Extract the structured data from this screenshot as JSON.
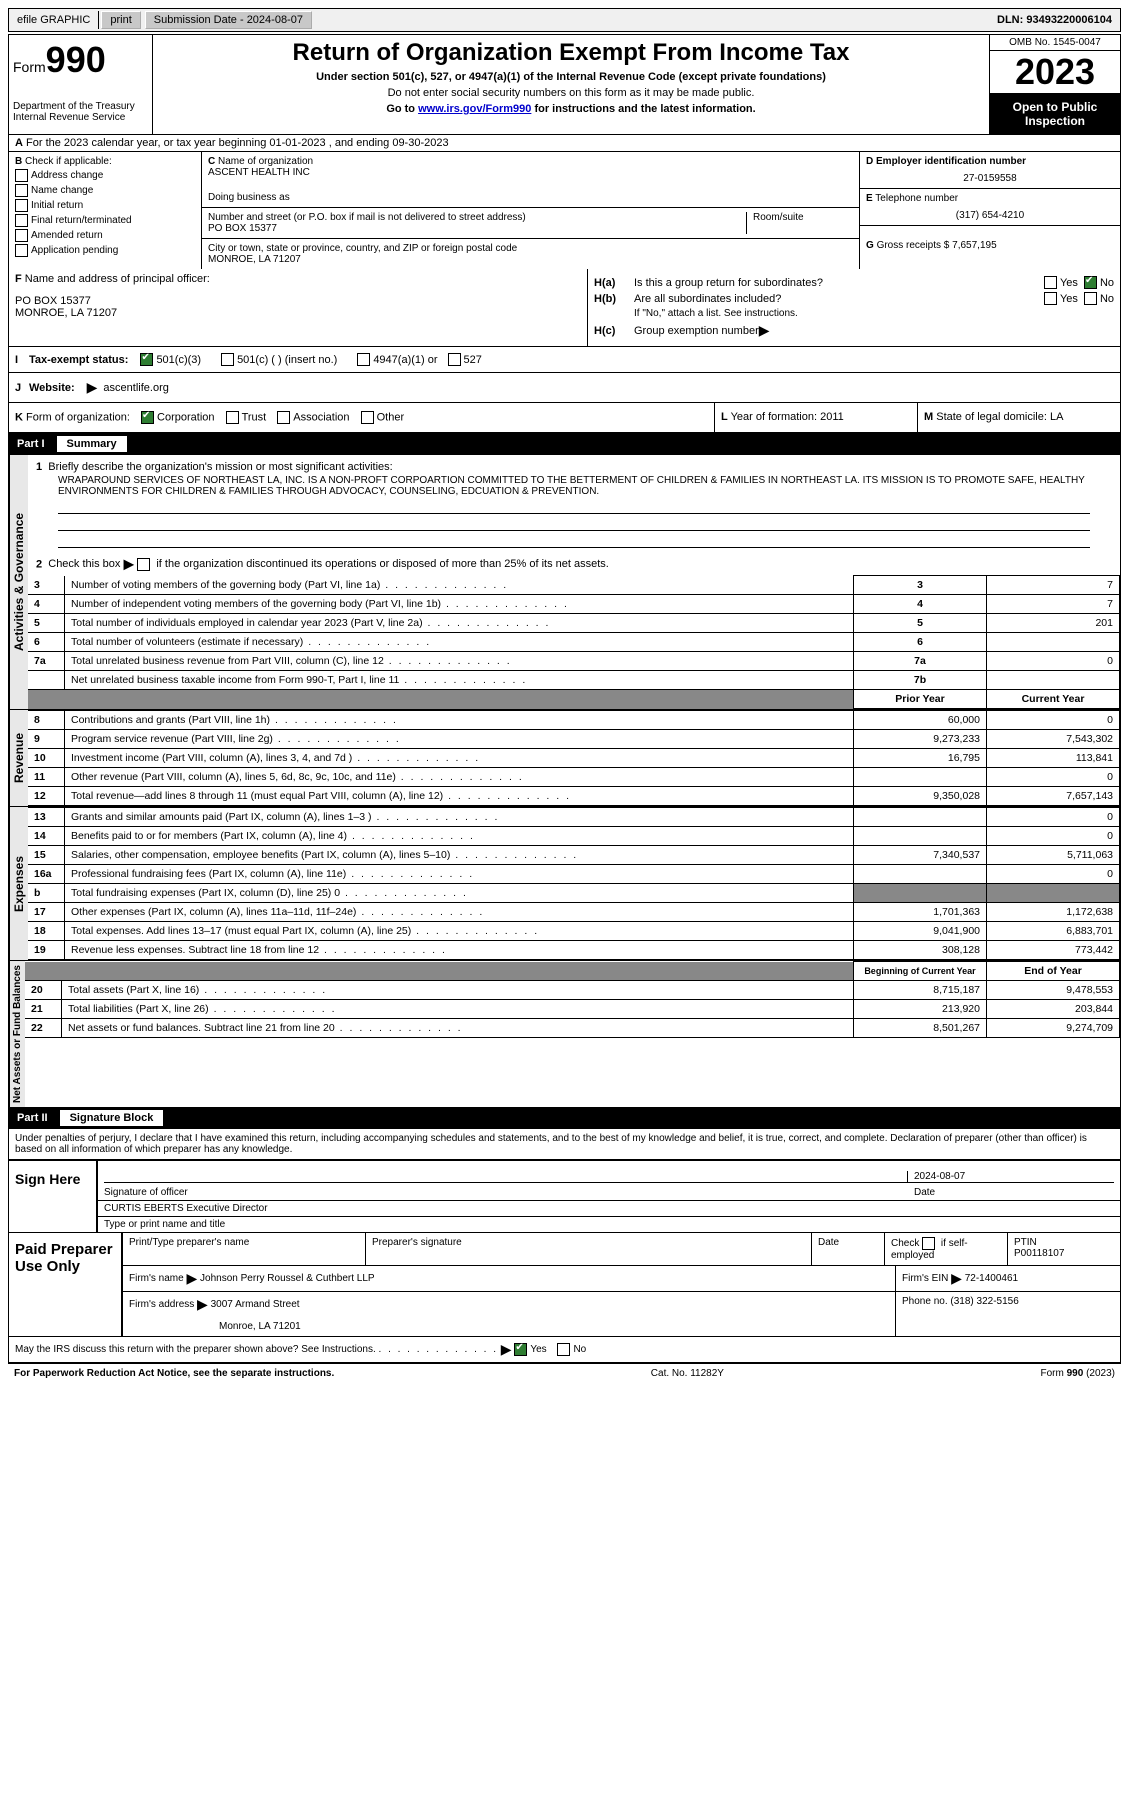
{
  "topbar": {
    "efile": "efile GRAPHIC",
    "print": "print",
    "submission_label": "Submission Date - 2024-08-07",
    "dln_label": "DLN: 93493220006104"
  },
  "header": {
    "form_prefix": "Form",
    "form_number": "990",
    "dept": "Department of the Treasury",
    "irs": "Internal Revenue Service",
    "title": "Return of Organization Exempt From Income Tax",
    "subtitle": "Under section 501(c), 527, or 4947(a)(1) of the Internal Revenue Code (except private foundations)",
    "warn": "Do not enter social security numbers on this form as it may be made public.",
    "goto_pre": "Go to ",
    "goto_link": "www.irs.gov/Form990",
    "goto_post": " for instructions and the latest information.",
    "omb": "OMB No. 1545-0047",
    "year": "2023",
    "open": "Open to Public Inspection"
  },
  "lineA": "For the 2023 calendar year, or tax year beginning 01-01-2023   , and ending 09-30-2023",
  "colB": {
    "label": "Check if applicable:",
    "opts": [
      "Address change",
      "Name change",
      "Initial return",
      "Final return/terminated",
      "Amended return",
      "Application pending"
    ]
  },
  "colC": {
    "name_label": "Name of organization",
    "name": "ASCENT HEALTH INC",
    "dba_label": "Doing business as",
    "addr_label": "Number and street (or P.O. box if mail is not delivered to street address)",
    "room_label": "Room/suite",
    "addr": "PO BOX 15377",
    "city_label": "City or town, state or province, country, and ZIP or foreign postal code",
    "city": "MONROE, LA  71207"
  },
  "colD": {
    "ein_label": "Employer identification number",
    "ein": "27-0159558",
    "phone_label": "Telephone number",
    "phone": "(317) 654-4210",
    "gross_label": "Gross receipts $",
    "gross": "7,657,195"
  },
  "lineF": {
    "label": "Name and address of principal officer:",
    "addr1": "PO BOX 15377",
    "addr2": "MONROE, LA  71207"
  },
  "lineH": {
    "a": "Is this a group return for subordinates?",
    "b": "Are all subordinates included?",
    "b_note": "If \"No,\" attach a list. See instructions.",
    "c": "Group exemption number",
    "yes": "Yes",
    "no": "No"
  },
  "lineI": {
    "label": "Tax-exempt status:",
    "opt1": "501(c)(3)",
    "opt2": "501(c) (  ) (insert no.)",
    "opt3": "4947(a)(1) or",
    "opt4": "527"
  },
  "lineJ": {
    "label": "Website:",
    "value": "ascentlife.org",
    "arrow": "▶"
  },
  "lineK": {
    "label": "Form of organization:",
    "opts": [
      "Corporation",
      "Trust",
      "Association",
      "Other"
    ],
    "L_label": "Year of formation:",
    "L_val": "2011",
    "M_label": "State of legal domicile:",
    "M_val": "LA"
  },
  "part1": {
    "num": "Part I",
    "title": "Summary"
  },
  "vert": {
    "gov": "Activities & Governance",
    "rev": "Revenue",
    "exp": "Expenses",
    "net": "Net Assets or Fund Balances"
  },
  "s1": {
    "line1_label": "Briefly describe the organization's mission or most significant activities:",
    "line1_text": "WRAPAROUND SERVICES OF NORTHEAST LA, INC. IS A NON-PROFT CORPOARTION COMMITTED TO THE BETTERMENT OF CHILDREN & FAMILIES IN NORTHEAST LA. ITS MISSION IS TO PROMOTE SAFE, HEALTHY ENVIRONMENTS FOR CHILDREN & FAMILIES THROUGH ADVOCACY, COUNSELING, EDCUATION & PREVENTION.",
    "line2": "Check this box      if the organization discontinued its operations or disposed of more than 25% of its net assets.",
    "rows": [
      {
        "n": "3",
        "t": "Number of voting members of the governing body (Part VI, line 1a)",
        "c": "3",
        "v": "7"
      },
      {
        "n": "4",
        "t": "Number of independent voting members of the governing body (Part VI, line 1b)",
        "c": "4",
        "v": "7"
      },
      {
        "n": "5",
        "t": "Total number of individuals employed in calendar year 2023 (Part V, line 2a)",
        "c": "5",
        "v": "201"
      },
      {
        "n": "6",
        "t": "Total number of volunteers (estimate if necessary)",
        "c": "6",
        "v": ""
      },
      {
        "n": "7a",
        "t": "Total unrelated business revenue from Part VIII, column (C), line 12",
        "c": "7a",
        "v": "0"
      },
      {
        "n": "",
        "t": "Net unrelated business taxable income from Form 990-T, Part I, line 11",
        "c": "7b",
        "v": ""
      }
    ],
    "col_prior": "Prior Year",
    "col_current": "Current Year",
    "rev_rows": [
      {
        "n": "8",
        "t": "Contributions and grants (Part VIII, line 1h)",
        "p": "60,000",
        "c": "0"
      },
      {
        "n": "9",
        "t": "Program service revenue (Part VIII, line 2g)",
        "p": "9,273,233",
        "c": "7,543,302"
      },
      {
        "n": "10",
        "t": "Investment income (Part VIII, column (A), lines 3, 4, and 7d )",
        "p": "16,795",
        "c": "113,841"
      },
      {
        "n": "11",
        "t": "Other revenue (Part VIII, column (A), lines 5, 6d, 8c, 9c, 10c, and 11e)",
        "p": "",
        "c": "0"
      },
      {
        "n": "12",
        "t": "Total revenue—add lines 8 through 11 (must equal Part VIII, column (A), line 12)",
        "p": "9,350,028",
        "c": "7,657,143"
      }
    ],
    "exp_rows": [
      {
        "n": "13",
        "t": "Grants and similar amounts paid (Part IX, column (A), lines 1–3 )",
        "p": "",
        "c": "0"
      },
      {
        "n": "14",
        "t": "Benefits paid to or for members (Part IX, column (A), line 4)",
        "p": "",
        "c": "0"
      },
      {
        "n": "15",
        "t": "Salaries, other compensation, employee benefits (Part IX, column (A), lines 5–10)",
        "p": "7,340,537",
        "c": "5,711,063"
      },
      {
        "n": "16a",
        "t": "Professional fundraising fees (Part IX, column (A), line 11e)",
        "p": "",
        "c": "0"
      },
      {
        "n": "b",
        "t": "Total fundraising expenses (Part IX, column (D), line 25) 0",
        "p": "gray",
        "c": "gray"
      },
      {
        "n": "17",
        "t": "Other expenses (Part IX, column (A), lines 11a–11d, 11f–24e)",
        "p": "1,701,363",
        "c": "1,172,638"
      },
      {
        "n": "18",
        "t": "Total expenses. Add lines 13–17 (must equal Part IX, column (A), line 25)",
        "p": "9,041,900",
        "c": "6,883,701"
      },
      {
        "n": "19",
        "t": "Revenue less expenses. Subtract line 18 from line 12",
        "p": "308,128",
        "c": "773,442"
      }
    ],
    "col_begin": "Beginning of Current Year",
    "col_end": "End of Year",
    "net_rows": [
      {
        "n": "20",
        "t": "Total assets (Part X, line 16)",
        "p": "8,715,187",
        "c": "9,478,553"
      },
      {
        "n": "21",
        "t": "Total liabilities (Part X, line 26)",
        "p": "213,920",
        "c": "203,844"
      },
      {
        "n": "22",
        "t": "Net assets or fund balances. Subtract line 21 from line 20",
        "p": "8,501,267",
        "c": "9,274,709"
      }
    ]
  },
  "part2": {
    "num": "Part II",
    "title": "Signature Block"
  },
  "perjury": "Under penalties of perjury, I declare that I have examined this return, including accompanying schedules and statements, and to the best of my knowledge and belief, it is true, correct, and complete. Declaration of preparer (other than officer) is based on all information of which preparer has any knowledge.",
  "sign": {
    "here": "Sign Here",
    "sig_label": "Signature of officer",
    "date_label": "Date",
    "date_val": "2024-08-07",
    "name": "CURTIS EBERTS Executive Director",
    "type_label": "Type or print name and title"
  },
  "prep": {
    "label": "Paid Preparer Use Only",
    "col1": "Print/Type preparer's name",
    "col2": "Preparer's signature",
    "col3": "Date",
    "col4_pre": "Check",
    "col4_post": "if self-employed",
    "col5_label": "PTIN",
    "col5_val": "P00118107",
    "firm_name_label": "Firm's name",
    "firm_name": "Johnson Perry Roussel & Cuthbert LLP",
    "firm_ein_label": "Firm's EIN",
    "firm_ein": "72-1400461",
    "firm_addr_label": "Firm's address",
    "firm_addr1": "3007 Armand Street",
    "firm_addr2": "Monroe, LA  71201",
    "phone_label": "Phone no.",
    "phone": "(318) 322-5156"
  },
  "discuss": {
    "text": "May the IRS discuss this return with the preparer shown above? See Instructions.",
    "yes": "Yes",
    "no": "No"
  },
  "footer": {
    "left": "For Paperwork Reduction Act Notice, see the separate instructions.",
    "mid": "Cat. No. 11282Y",
    "right_pre": "Form ",
    "right_bold": "990",
    "right_post": " (2023)"
  },
  "letters": {
    "A": "A",
    "B": "B",
    "C": "C",
    "D": "D",
    "E": "E",
    "F": "F",
    "G": "G",
    "H": "H",
    "I": "I",
    "J": "J",
    "K": "K",
    "L": "L",
    "M": "M"
  }
}
